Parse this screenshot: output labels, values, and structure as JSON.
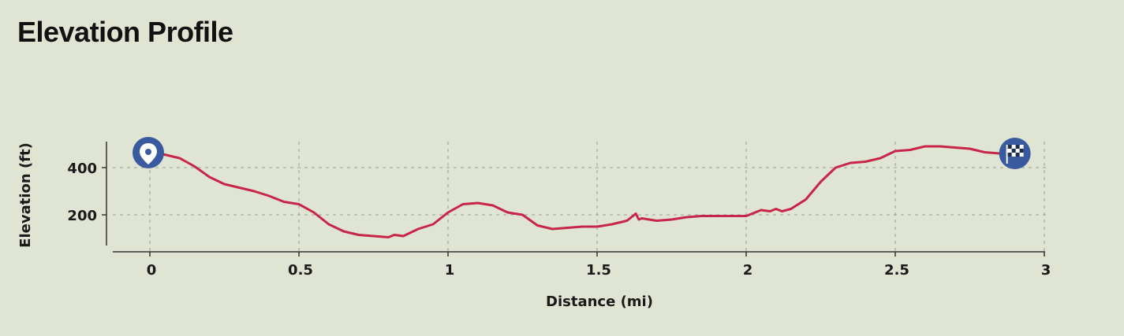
{
  "title": "Elevation Profile",
  "colors": {
    "background": "#dfe5d2",
    "line": "#c8254a",
    "marker": "#3a5aa0",
    "grid": "#9a9a9a",
    "axis": "#333333"
  },
  "icons": {
    "start": "map-pin-icon",
    "end": "checkered-flag-icon"
  },
  "chart_data": {
    "type": "line",
    "title": "Elevation Profile",
    "xlabel": "Distance (mi)",
    "ylabel": "Elevation (ft)",
    "xlim": [
      -0.13,
      3.0
    ],
    "ylim": [
      50,
      500
    ],
    "xticks": [
      0,
      0.5,
      1,
      1.5,
      2,
      2.5,
      3
    ],
    "xtick_labels": [
      "0",
      "0.5",
      "1",
      "1.5",
      "2",
      "2.5",
      "3"
    ],
    "yticks": [
      200,
      400
    ],
    "ytick_labels": [
      "200",
      "400"
    ],
    "grid": true,
    "series": [
      {
        "x": [
          0,
          0.05,
          0.1,
          0.15,
          0.2,
          0.25,
          0.3,
          0.35,
          0.4,
          0.45,
          0.5,
          0.55,
          0.6,
          0.65,
          0.7,
          0.75,
          0.8,
          0.82,
          0.85,
          0.9,
          0.95,
          1.0,
          1.05,
          1.1,
          1.15,
          1.2,
          1.25,
          1.3,
          1.35,
          1.4,
          1.45,
          1.5,
          1.55,
          1.6,
          1.62,
          1.63,
          1.64,
          1.65,
          1.7,
          1.75,
          1.8,
          1.85,
          1.9,
          1.95,
          2.0,
          2.05,
          2.08,
          2.1,
          2.12,
          2.15,
          2.2,
          2.25,
          2.3,
          2.35,
          2.4,
          2.45,
          2.5,
          2.55,
          2.6,
          2.65,
          2.7,
          2.75,
          2.8,
          2.85,
          2.88
        ],
        "y": [
          460,
          455,
          440,
          405,
          360,
          330,
          315,
          300,
          280,
          255,
          245,
          210,
          160,
          130,
          115,
          110,
          105,
          115,
          110,
          140,
          160,
          210,
          245,
          250,
          240,
          210,
          200,
          155,
          140,
          145,
          150,
          150,
          160,
          175,
          195,
          205,
          180,
          185,
          175,
          180,
          190,
          195,
          195,
          195,
          195,
          220,
          215,
          225,
          215,
          225,
          265,
          340,
          400,
          420,
          425,
          440,
          470,
          475,
          490,
          490,
          485,
          480,
          465,
          460,
          460
        ]
      }
    ]
  }
}
